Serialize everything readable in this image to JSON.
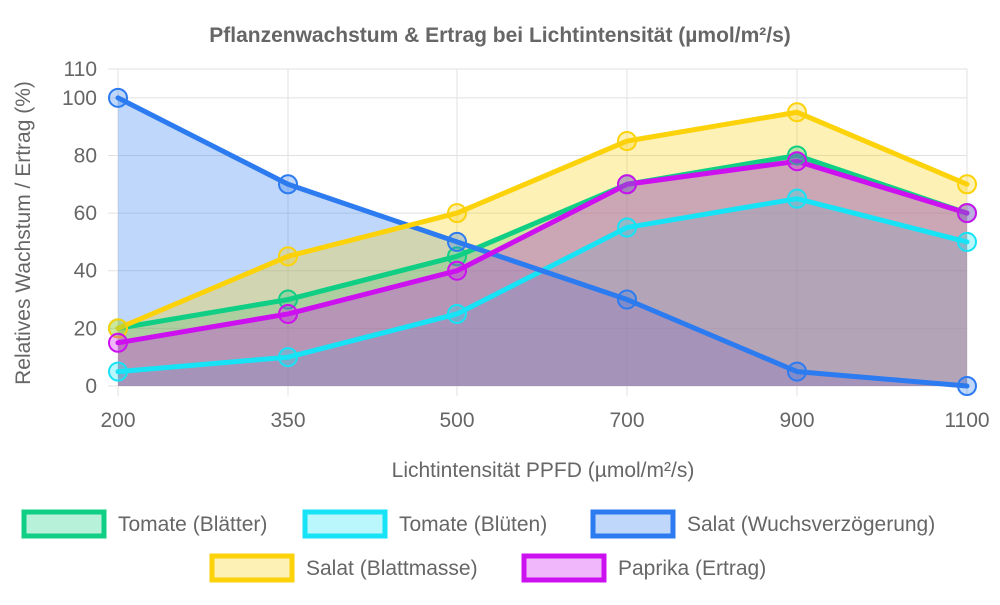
{
  "chart_data": {
    "type": "line",
    "title": "Pflanzenwachstum & Ertrag bei Lichtintensität (µmol/m²/s)",
    "xlabel": "Lichtintensität PPFD (µmol/m²/s)",
    "ylabel": "Relatives Wachstum / Ertrag (%)",
    "categories": [
      "200",
      "350",
      "500",
      "700",
      "900",
      "1100"
    ],
    "y_ticks": [
      "0",
      "20",
      "40",
      "60",
      "80",
      "100",
      "110"
    ],
    "ylim": [
      0,
      110
    ],
    "grid": true,
    "legend_position": "bottom",
    "area_fill": true,
    "series": [
      {
        "name": "Tomate (Blätter)",
        "values": [
          20,
          30,
          45,
          70,
          80,
          60
        ],
        "color": "#10cf84",
        "fill": "rgba(16,207,132,0.3)"
      },
      {
        "name": "Tomate (Blüten)",
        "values": [
          5,
          10,
          25,
          55,
          65,
          50
        ],
        "color": "#16e3f5",
        "fill": "rgba(22,227,245,0.3)"
      },
      {
        "name": "Salat (Wuchsverzögerung)",
        "values": [
          100,
          70,
          50,
          30,
          5,
          0
        ],
        "color": "#2c7bf0",
        "fill": "rgba(44,123,240,0.3)"
      },
      {
        "name": "Salat (Blattmasse)",
        "values": [
          20,
          45,
          60,
          85,
          95,
          70
        ],
        "color": "#fcd20a",
        "fill": "rgba(252,210,10,0.3)"
      },
      {
        "name": "Paprika (Ertrag)",
        "values": [
          15,
          25,
          40,
          70,
          78,
          60
        ],
        "color": "#cc10ef",
        "fill": "rgba(204,16,239,0.3)"
      }
    ]
  }
}
